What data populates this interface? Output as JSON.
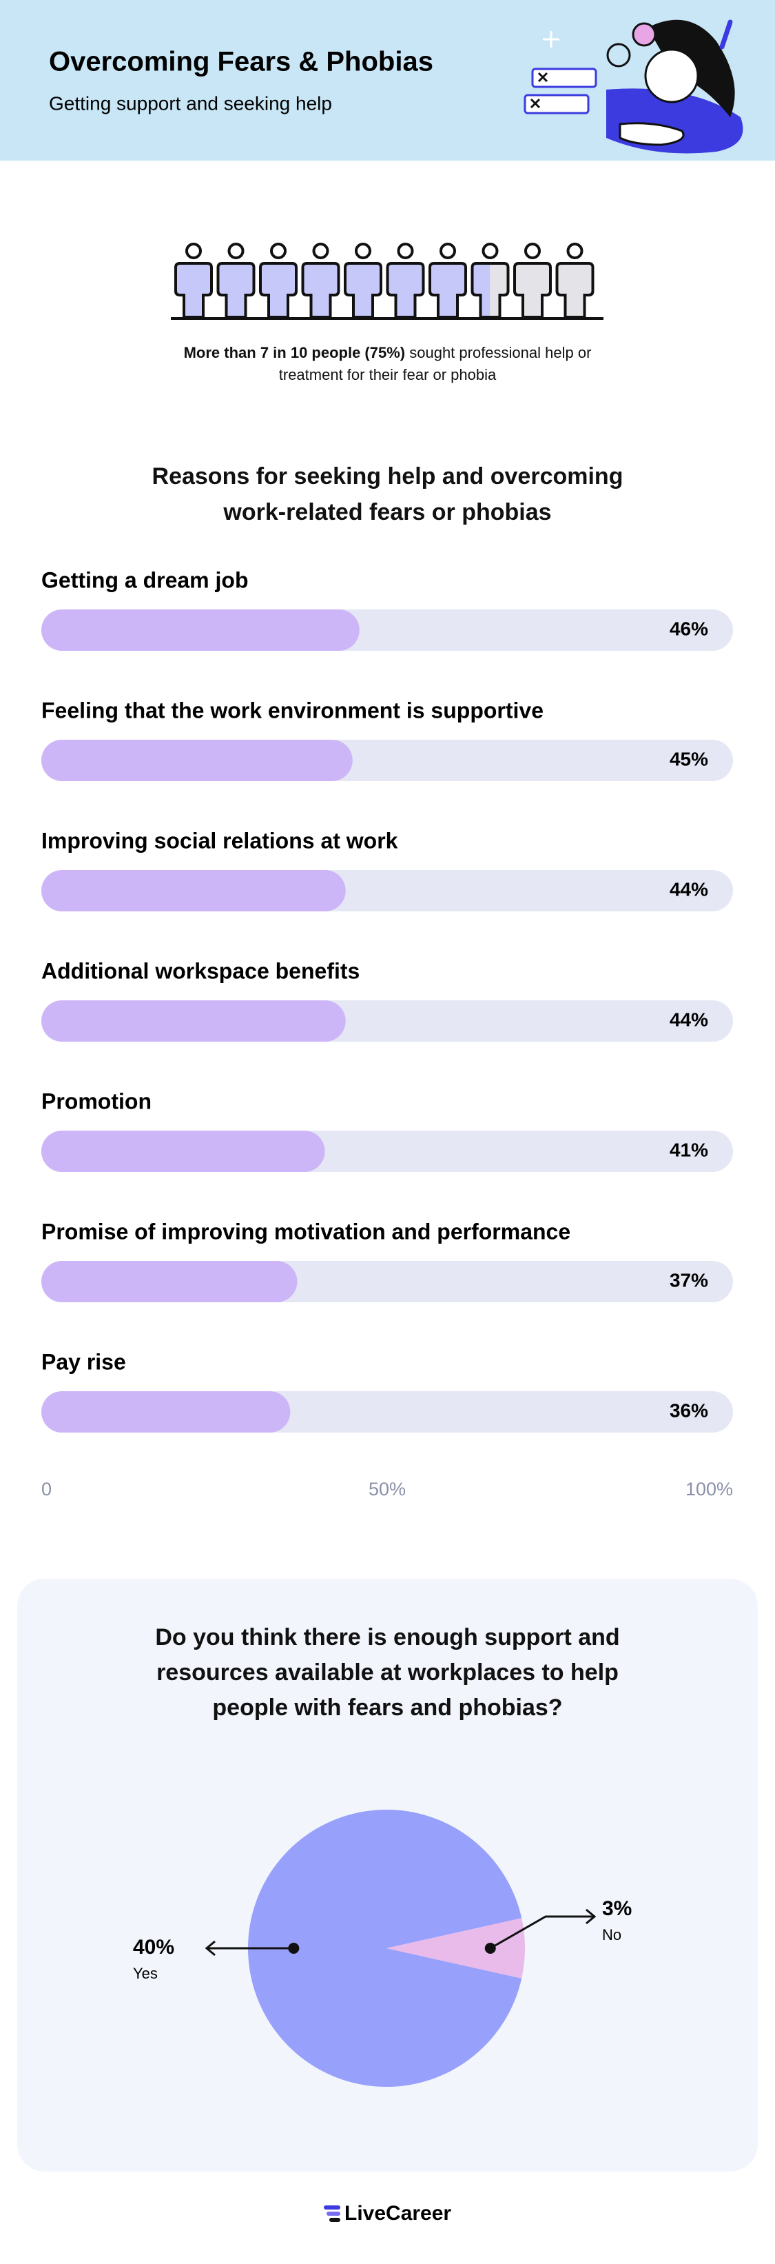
{
  "header": {
    "title": "Overcoming Fears & Phobias",
    "subtitle": "Getting support and seeking help"
  },
  "stat": {
    "bold": "More than 7 in 10 people (75%)",
    "text": "sought professional help or treatment for their fear or phobia",
    "value": 75,
    "color": "#c5c8f8",
    "empty_color": "#e4e4e8"
  },
  "chart_data": [
    {
      "type": "bar",
      "title": "Reasons for seeking help and overcoming work-related fears or phobias",
      "categories": [
        "Getting a dream job",
        "Feeling that the work environment is supportive",
        "Improving social relations at work",
        "Additional workspace benefits",
        "Promotion",
        "Promise of improving motivation and performance",
        "Pay rise"
      ],
      "values": [
        46,
        45,
        44,
        44,
        41,
        37,
        36
      ],
      "value_labels": [
        "46%",
        "45%",
        "44%",
        "44%",
        "41%",
        "37%",
        "36%"
      ],
      "color": "#cdb6f8",
      "track_color": "#e5e8f4",
      "xlim": [
        0,
        100
      ],
      "xticks": [
        0,
        {
          "value": 50,
          "label": "50%"
        },
        {
          "value": 100,
          "label": "100%"
        }
      ],
      "grid": false
    },
    {
      "type": "pie",
      "title": "Do you think there is enough support and resources available at workplaces to help people with fears and phobias?",
      "categories": [
        "Yes",
        "No"
      ],
      "values": [
        40,
        3
      ],
      "value_labels": [
        "40%",
        "3%"
      ],
      "colors": [
        "#97a0fb",
        "#e9bbea"
      ]
    }
  ],
  "footer": {
    "logo": "LiveCareer"
  }
}
